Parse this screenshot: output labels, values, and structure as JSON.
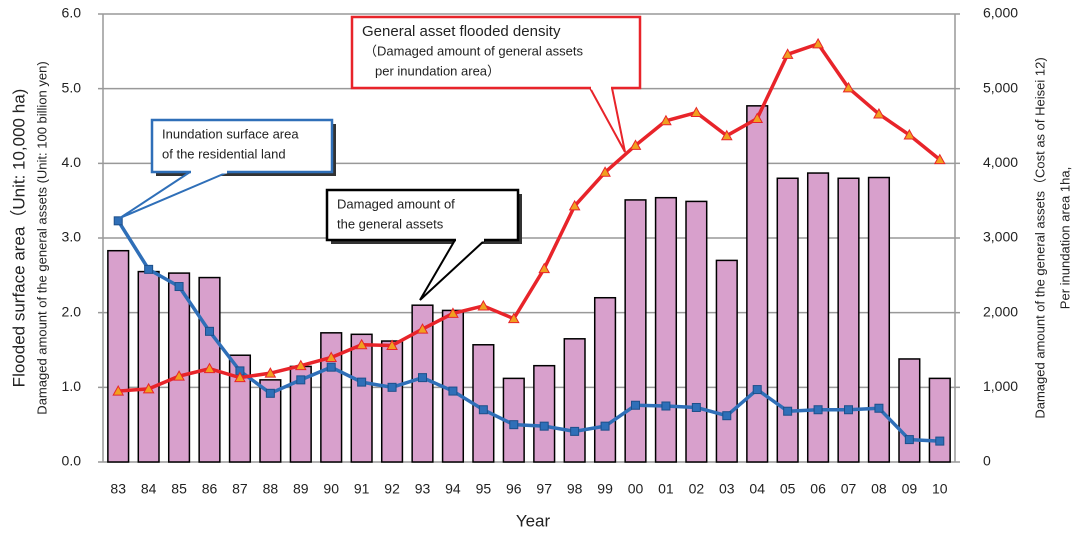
{
  "chart_data": {
    "type": "bar",
    "x_label": "Year",
    "y_label": "Flooded surface area（Unit: 10,000 ha)",
    "y_label_2": "Damaged amount of the general assets (Unit: 100 billion yen)",
    "y2_label": "Damaged amount of the general assets（Cost as of Heisei 12)",
    "y2_label_2": "Per inundation area 1ha,",
    "categories": [
      "83",
      "84",
      "85",
      "86",
      "87",
      "88",
      "89",
      "90",
      "91",
      "92",
      "93",
      "94",
      "95",
      "96",
      "97",
      "98",
      "99",
      "00",
      "01",
      "02",
      "03",
      "04",
      "05",
      "06",
      "07",
      "08",
      "09",
      "10"
    ],
    "series": [
      {
        "type": "bar",
        "color": "#d8a0cc",
        "values": [
          2.83,
          2.55,
          2.53,
          2.47,
          1.43,
          1.1,
          1.28,
          1.73,
          1.71,
          1.62,
          2.1,
          2.03,
          1.57,
          1.12,
          1.29,
          1.65,
          2.2,
          3.51,
          3.54,
          3.49,
          2.7,
          4.77,
          3.8,
          3.87,
          3.8,
          3.81,
          1.38,
          1.12
        ]
      },
      {
        "type": "line",
        "color": "#2f6fb8",
        "values": [
          3.23,
          2.58,
          2.35,
          1.75,
          1.22,
          0.92,
          1.1,
          1.27,
          1.07,
          1.0,
          1.13,
          0.95,
          0.7,
          0.5,
          0.48,
          0.41,
          0.48,
          0.76,
          0.75,
          0.73,
          0.62,
          0.97,
          0.68,
          0.7,
          0.7,
          0.72,
          0.3,
          0.28
        ]
      },
      {
        "type": "line",
        "axis": "y2",
        "color": "#e8242a",
        "marker_color": "#f0a020",
        "values": [
          950,
          980,
          1150,
          1250,
          1130,
          1190,
          1290,
          1400,
          1570,
          1560,
          1780,
          1990,
          2090,
          1920,
          2590,
          3430,
          3880,
          4240,
          4570,
          4680,
          4370,
          4600,
          5460,
          5600,
          5010,
          4660,
          4380,
          4050
        ]
      }
    ],
    "ylim": [
      0,
      6
    ],
    "yticks": [
      {
        "value": 0,
        "label": "0.0"
      },
      {
        "value": 1,
        "label": "1.0"
      },
      {
        "value": 2,
        "label": "2.0"
      },
      {
        "value": 3,
        "label": "3.0"
      },
      {
        "value": 4,
        "label": "4.0"
      },
      {
        "value": 5,
        "label": "5.0"
      },
      {
        "value": 6,
        "label": "6.0"
      }
    ],
    "y2lim": [
      0,
      6000
    ],
    "y2ticks": [
      0,
      {
        "value": 1000,
        "label": "1,000"
      },
      {
        "value": 2000,
        "label": "2,000"
      },
      {
        "value": 3000,
        "label": "3,000"
      },
      {
        "value": 4000,
        "label": "4,000"
      },
      {
        "value": 5000,
        "label": "5,000"
      },
      {
        "value": 6000,
        "label": "6,000"
      }
    ],
    "grid": true,
    "annotations": [
      {
        "color": "#e8242a",
        "lines": [
          "General asset flooded density",
          "（Damaged amount of general assets",
          "per inundation area）"
        ]
      },
      {
        "color": "#2f6fb8",
        "lines": [
          "Inundation surface area",
          "of the residential land"
        ]
      },
      {
        "color": "#000000",
        "lines": [
          "Damaged amount of",
          "the general assets"
        ]
      }
    ]
  }
}
